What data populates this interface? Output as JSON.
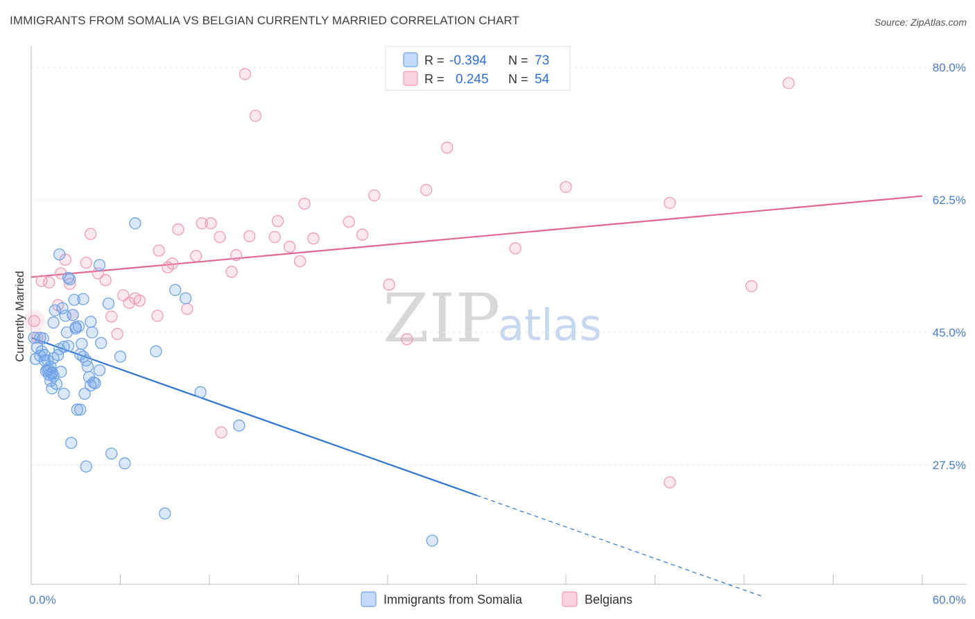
{
  "title": "IMMIGRANTS FROM SOMALIA VS BELGIAN CURRENTLY MARRIED CORRELATION CHART",
  "source": "Source: ZipAtlas.com",
  "watermark": {
    "zip": "ZIP",
    "atlas": "atlas"
  },
  "legend": {
    "rows": [
      {
        "r_label": "R =",
        "r_value": "-0.394",
        "n_label": "N =",
        "n_value": "73",
        "color": "#6fa3e6"
      },
      {
        "r_label": "R =",
        "r_value": "0.245",
        "n_label": "N =",
        "n_value": "54",
        "color": "#f29ab6"
      }
    ]
  },
  "chart_data": {
    "type": "scatter",
    "title": "IMMIGRANTS FROM SOMALIA VS BELGIAN CURRENTLY MARRIED CORRELATION CHART",
    "xlabel": "",
    "ylabel": "Currently Married",
    "xlim": [
      0,
      60
    ],
    "ylim": [
      9.5,
      82.5
    ],
    "y_ticks": [
      27.5,
      45.0,
      62.5,
      80.0
    ],
    "y_tick_labels": [
      "27.5%",
      "45.0%",
      "62.5%",
      "80.0%"
    ],
    "x_tick_labels": [
      "0.0%",
      "60.0%"
    ],
    "grid": true,
    "series": [
      {
        "name": "Immigrants from Somalia",
        "color": "#6fa3e6",
        "line_color": "#2e72d2",
        "trend": {
          "x_start": 0,
          "y_start": 44.3,
          "x_solid_end": 30,
          "x_end": 49.2,
          "slope": -0.694
        },
        "points": [
          [
            0.2,
            44.3
          ],
          [
            0.3,
            41.5
          ],
          [
            0.4,
            43.0
          ],
          [
            0.6,
            44.3
          ],
          [
            0.7,
            42.5
          ],
          [
            0.8,
            44.2
          ],
          [
            0.9,
            41.3
          ],
          [
            1.0,
            39.9
          ],
          [
            1.1,
            41.3
          ],
          [
            1.2,
            40.1
          ],
          [
            1.3,
            40.5
          ],
          [
            1.4,
            39.6
          ],
          [
            1.5,
            39.2
          ],
          [
            1.4,
            39.7
          ],
          [
            1.2,
            39.4
          ],
          [
            1.3,
            38.6
          ],
          [
            1.4,
            37.6
          ],
          [
            1.5,
            46.3
          ],
          [
            1.6,
            47.9
          ],
          [
            1.7,
            38.2
          ],
          [
            1.8,
            42.0
          ],
          [
            1.9,
            42.8
          ],
          [
            2.0,
            39.8
          ],
          [
            2.1,
            48.2
          ],
          [
            2.2,
            36.9
          ],
          [
            2.3,
            47.2
          ],
          [
            2.4,
            45.0
          ],
          [
            2.5,
            43.2
          ],
          [
            2.6,
            52.0
          ],
          [
            2.7,
            30.4
          ],
          [
            2.8,
            47.3
          ],
          [
            2.9,
            49.3
          ],
          [
            3.0,
            45.5
          ],
          [
            3.1,
            34.8
          ],
          [
            3.2,
            45.8
          ],
          [
            3.3,
            42.1
          ],
          [
            3.4,
            43.5
          ],
          [
            3.5,
            49.4
          ],
          [
            3.6,
            36.9
          ],
          [
            3.7,
            27.3
          ],
          [
            3.8,
            40.5
          ],
          [
            3.9,
            39.1
          ],
          [
            4.0,
            38.0
          ],
          [
            4.1,
            45.0
          ],
          [
            4.2,
            38.4
          ],
          [
            3.7,
            41.3
          ],
          [
            4.6,
            40.0
          ],
          [
            4.7,
            43.6
          ],
          [
            5.2,
            48.8
          ],
          [
            5.4,
            29.0
          ],
          [
            6.0,
            41.8
          ],
          [
            6.3,
            27.7
          ],
          [
            7.0,
            59.4
          ],
          [
            8.4,
            42.5
          ],
          [
            9.0,
            21.1
          ],
          [
            9.7,
            50.6
          ],
          [
            10.4,
            49.5
          ],
          [
            11.4,
            37.1
          ],
          [
            14.0,
            32.7
          ],
          [
            27.0,
            17.5
          ],
          [
            0.9,
            42.0
          ],
          [
            1.9,
            55.3
          ],
          [
            3.3,
            34.8
          ],
          [
            4.0,
            46.4
          ],
          [
            4.6,
            53.9
          ],
          [
            2.5,
            52.2
          ],
          [
            3.5,
            41.8
          ],
          [
            1.5,
            41.6
          ],
          [
            0.6,
            41.9
          ],
          [
            2.2,
            43.1
          ],
          [
            3.0,
            45.7
          ],
          [
            1.1,
            40.0
          ],
          [
            4.3,
            38.3
          ]
        ]
      },
      {
        "name": "Belgians",
        "color": "#f29ab6",
        "line_color": "#e06890",
        "trend": {
          "x_start": 0,
          "y_start": 52.3,
          "x_end": 60,
          "y_end": 63.0
        },
        "points": [
          [
            0.4,
            44.3
          ],
          [
            0.7,
            51.8
          ],
          [
            1.2,
            51.6
          ],
          [
            1.8,
            48.6
          ],
          [
            2.0,
            52.8
          ],
          [
            2.3,
            54.6
          ],
          [
            2.6,
            51.4
          ],
          [
            2.8,
            47.3
          ],
          [
            3.7,
            54.2
          ],
          [
            4.0,
            58.0
          ],
          [
            4.5,
            52.8
          ],
          [
            5.0,
            51.9
          ],
          [
            5.4,
            47.1
          ],
          [
            5.8,
            44.8
          ],
          [
            6.2,
            49.9
          ],
          [
            6.6,
            48.9
          ],
          [
            7.0,
            49.5
          ],
          [
            7.3,
            49.2
          ],
          [
            8.5,
            47.2
          ],
          [
            8.6,
            55.8
          ],
          [
            9.2,
            53.6
          ],
          [
            9.5,
            54.1
          ],
          [
            9.9,
            58.6
          ],
          [
            10.5,
            48.1
          ],
          [
            11.1,
            55.1
          ],
          [
            11.5,
            59.4
          ],
          [
            12.1,
            59.4
          ],
          [
            12.7,
            57.6
          ],
          [
            13.5,
            53.0
          ],
          [
            13.8,
            55.2
          ],
          [
            14.4,
            79.1
          ],
          [
            14.7,
            57.7
          ],
          [
            15.1,
            73.6
          ],
          [
            16.4,
            57.6
          ],
          [
            16.6,
            59.7
          ],
          [
            17.4,
            56.3
          ],
          [
            18.1,
            54.4
          ],
          [
            18.4,
            62.0
          ],
          [
            19.0,
            57.4
          ],
          [
            21.4,
            59.6
          ],
          [
            22.3,
            57.9
          ],
          [
            23.1,
            63.1
          ],
          [
            24.1,
            51.3
          ],
          [
            25.3,
            44.1
          ],
          [
            26.6,
            63.8
          ],
          [
            28.0,
            69.4
          ],
          [
            32.6,
            56.1
          ],
          [
            36.0,
            64.2
          ],
          [
            43.0,
            62.1
          ],
          [
            48.5,
            51.1
          ],
          [
            51.0,
            77.9
          ],
          [
            43.0,
            25.2
          ],
          [
            12.8,
            31.8
          ],
          [
            0.2,
            46.5
          ]
        ]
      }
    ]
  },
  "bottom_legend": [
    {
      "label": "Immigrants from Somalia",
      "color": "#6fa3e6"
    },
    {
      "label": "Belgians",
      "color": "#f29ab6"
    }
  ]
}
